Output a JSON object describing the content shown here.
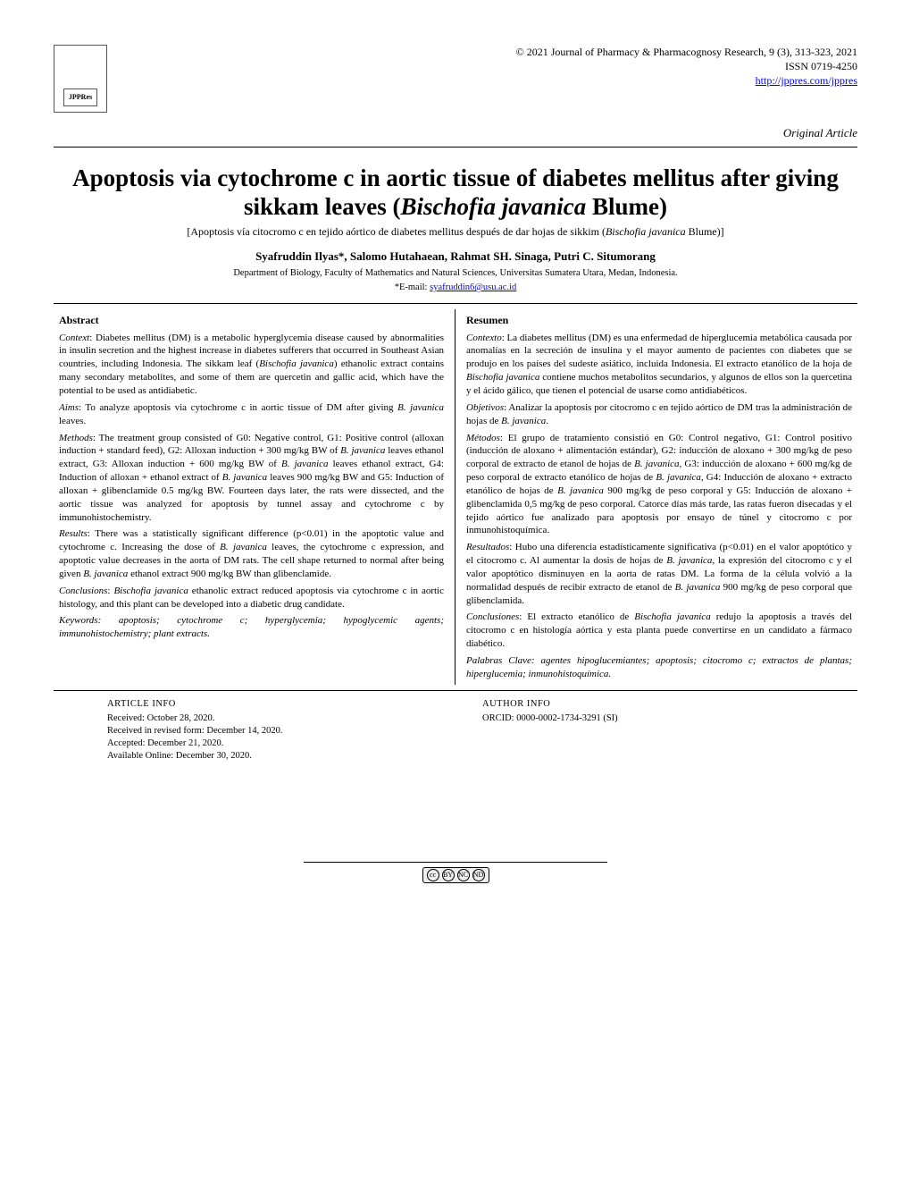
{
  "header": {
    "journal_line": "© 2021 Journal of Pharmacy & Pharmacognosy Research, 9 (3), 313-323, 2021",
    "issn": "ISSN 0719-4250",
    "url": "http://jppres.com/jppres",
    "article_type": "Original Article",
    "logo_text": "JPPRes"
  },
  "title": {
    "pre": "Apoptosis via cytochrome c in aortic tissue of diabetes mellitus after giving sikkam leaves (",
    "sci": "Bischofia javanica",
    "post": " Blume)"
  },
  "subtitle_es": {
    "pre": "[Apoptosis vía citocromo c en tejido aórtico de diabetes mellitus después de dar hojas de sikkim (",
    "sci": "Bischofia javanica",
    "post": " Blume)]"
  },
  "authors": "Syafruddin Ilyas*, Salomo Hutahaean, Rahmat SH. Sinaga, Putri C. Situmorang",
  "affiliation": "Department of Biology, Faculty of Mathematics and Natural Sciences, Universitas Sumatera Utara, Medan, Indonesia.",
  "email_label": "*E-mail: ",
  "email": "syafruddin6@usu.ac.id",
  "abstract": {
    "en": {
      "heading": "Abstract",
      "context_lead": "Context",
      "context": ": Diabetes mellitus (DM) is a metabolic hyperglycemia disease caused by abnormalities in insulin secretion and the highest increase in diabetes sufferers that occurred in Southeast Asian countries, including Indonesia. The sikkam leaf (",
      "context_sci": "Bischofia javanica",
      "context_tail": ") ethanolic extract contains many secondary metabolites, and some of them are quercetin and gallic acid, which have the potential to be used as antidiabetic.",
      "aims_lead": "Aims",
      "aims": ": To analyze apoptosis via cytochrome c in aortic tissue of DM after giving ",
      "aims_sci": "B. javanica",
      "aims_tail": " leaves.",
      "methods_lead": "Methods",
      "methods": ": The treatment group consisted of G0: Negative control, G1: Positive control (alloxan induction + standard feed), G2: Alloxan induction + 300 mg/kg BW of ",
      "methods_sci1": "B. javanica",
      "methods_mid1": " leaves ethanol extract, G3: Alloxan induction + 600 mg/kg BW of ",
      "methods_sci2": "B. javanica",
      "methods_mid2": " leaves ethanol extract, G4: Induction of alloxan + ethanol extract of ",
      "methods_sci3": "B. javanica",
      "methods_tail": " leaves 900 mg/kg BW and G5: Induction of alloxan + glibenclamide 0.5 mg/kg BW. Fourteen days later, the rats were dissected, and the aortic tissue was analyzed for apoptosis by tunnel assay and cytochrome c by immunohistochemistry.",
      "results_lead": "Results",
      "results": ": There was a statistically significant difference (p<0.01) in the apoptotic value and cytochrome c. Increasing the dose of ",
      "results_sci1": "B. javanica",
      "results_mid": " leaves, the cytochrome c expression, and apoptotic value decreases in the aorta of DM rats. The cell shape returned to normal after being given ",
      "results_sci2": "B. javanica",
      "results_tail": " ethanol extract 900 mg/kg BW than glibenclamide.",
      "concl_lead": "Conclusions",
      "concl": ": ",
      "concl_sci": "Bischofia javanica",
      "concl_tail": " ethanolic extract reduced apoptosis via cytochrome c in aortic histology, and this plant can be developed into a diabetic drug candidate.",
      "keywords_lead": "Keywords",
      "keywords": ": apoptosis; cytochrome c; hyperglycemia; hypoglycemic agents; immunohistochemistry; plant extracts."
    },
    "es": {
      "heading": "Resumen",
      "context_lead": "Contexto",
      "context": ": La diabetes mellitus (DM) es una enfermedad de hiperglucemia metabólica causada por anomalías en la secreción de insulina y el mayor aumento de pacientes con diabetes que se produjo en los países del sudeste asiático, incluida Indonesia. El extracto etanólico de la hoja de ",
      "context_sci": "Bischofia javanica",
      "context_tail": " contiene muchos metabolitos secundarios, y algunos de ellos son la quercetina y el ácido gálico, que tienen el potencial de usarse como antidiabéticos.",
      "aims_lead": "Objetivos",
      "aims": ": Analizar la apoptosis por citocromo c en tejido aórtico de DM tras la administración de hojas de ",
      "aims_sci": "B. javanica",
      "aims_tail": ".",
      "methods_lead": "Métodos",
      "methods": ": El grupo de tratamiento consistió en G0: Control negativo, G1: Control positivo (inducción de aloxano + alimentación estándar), G2: inducción de aloxano + 300 mg/kg de peso corporal de extracto de etanol de hojas de ",
      "methods_sci1": "B. javanica",
      "methods_mid1": ", G3: inducción de aloxano + 600 mg/kg de peso corporal de extracto etanólico de hojas de ",
      "methods_sci2": "B. javanica",
      "methods_mid2": ", G4: Inducción de aloxano + extracto etanólico de hojas de ",
      "methods_sci3": "B. javanica",
      "methods_tail": " 900 mg/kg de peso corporal y G5: Inducción de aloxano + glibenclamida 0,5 mg/kg de peso corporal. Catorce días más tarde, las ratas fueron disecadas y el tejido aórtico fue analizado para apoptosis por ensayo de túnel y citocromo c por inmunohistoquímica.",
      "results_lead": "Resultados",
      "results": ": Hubo una diferencia estadísticamente significativa (p<0.01) en el valor apoptótico y el citocromo c. Al aumentar la dosis de hojas de ",
      "results_sci1": "B. javanica",
      "results_mid": ", la expresión del citocromo c y el valor apoptótico disminuyen en la aorta de ratas DM. La forma de la célula volvió a la normalidad después de recibir extracto de etanol de ",
      "results_sci2": "B. javanica",
      "results_tail": " 900 mg/kg de peso corporal que glibenclamida.",
      "concl_lead": "Conclusiones",
      "concl": ": El extracto etanólico de ",
      "concl_sci": "Bischofia javanica",
      "concl_tail": " redujo la apoptosis a través del citocromo c en histología aórtica y esta planta puede convertirse en un candidato a fármaco diabético.",
      "keywords_lead": "Palabras Clave",
      "keywords": ": agentes hipoglucemiantes; apoptosis; citocromo c; extractos de plantas; hiperglucemia; inmunohistoquímica."
    }
  },
  "article_info": {
    "heading": "ARTICLE INFO",
    "received": "Received: October 28, 2020.",
    "revised": "Received in revised form: December 14, 2020.",
    "accepted": "Accepted: December 21, 2020.",
    "online": "Available Online: December 30, 2020."
  },
  "author_info": {
    "heading": "AUTHOR INFO",
    "orcid": "ORCID: 0000-0002-1734-3291 (SI)"
  },
  "cc": {
    "label": "cc",
    "by": "BY",
    "nc": "NC",
    "nd": "ND"
  }
}
